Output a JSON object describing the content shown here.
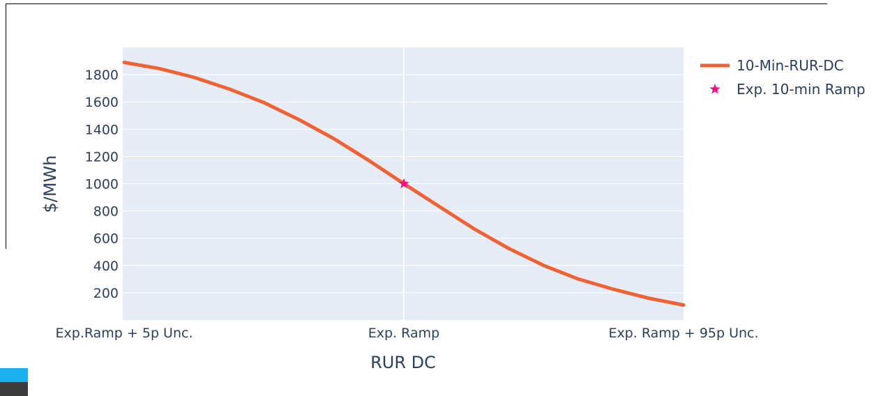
{
  "chart_data": {
    "type": "line",
    "xlabel": "RUR DC",
    "ylabel": "$/MWh",
    "xlim": [
      0,
      1
    ],
    "ylim": [
      0,
      2000
    ],
    "x_tick_labels": [
      {
        "x": 0.0,
        "label": "Exp.Ramp + 5p Unc."
      },
      {
        "x": 0.5,
        "label": "Exp. Ramp"
      },
      {
        "x": 1.0,
        "label": "Exp. Ramp + 95p Unc."
      }
    ],
    "y_ticks": [
      200,
      400,
      600,
      800,
      1000,
      1200,
      1400,
      1600,
      1800
    ],
    "grid": true,
    "legend_position": "top-right",
    "series": [
      {
        "name": "10-Min-RUR-DC",
        "color": "#ef6234",
        "mode": "line",
        "x": [
          0.0,
          0.0625,
          0.125,
          0.1875,
          0.25,
          0.3125,
          0.375,
          0.4375,
          0.5,
          0.5625,
          0.625,
          0.6875,
          0.75,
          0.8125,
          0.875,
          0.9375,
          1.0
        ],
        "y": [
          1890,
          1845,
          1780,
          1695,
          1595,
          1470,
          1330,
          1170,
          1000,
          835,
          670,
          525,
          400,
          300,
          225,
          160,
          110
        ]
      },
      {
        "name": "Exp. 10-min Ramp",
        "color": "#ff0a8c",
        "mode": "marker",
        "marker": "star",
        "x": [
          0.5
        ],
        "y": [
          1000
        ]
      }
    ]
  }
}
